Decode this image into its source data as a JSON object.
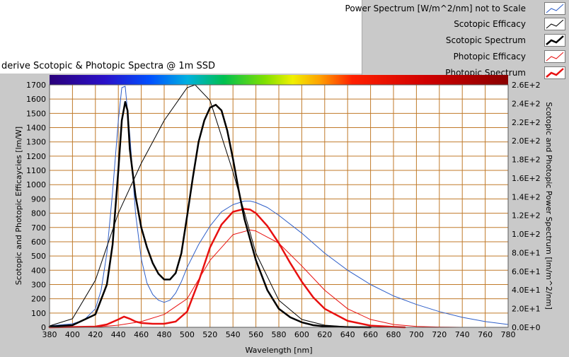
{
  "caption": "derive Scotopic & Photopic Spectra @ 1m SSD",
  "legend": [
    {
      "label": "Power Spectrum [W/m^2/nm] not to Scale",
      "color": "#2f5fc8",
      "width": 1
    },
    {
      "label": "Scotopic Efficacy",
      "color": "#000000",
      "width": 1
    },
    {
      "label": "Scotopic Spectrum",
      "color": "#000000",
      "width": 2.5
    },
    {
      "label": "Photopic Efficacy",
      "color": "#e81010",
      "width": 1
    },
    {
      "label": "Photopic Spectrum",
      "color": "#e81010",
      "width": 2.5
    }
  ],
  "chart_data": {
    "type": "line",
    "xlabel": "Wavelength [nm]",
    "ylabel": "Scotopic and Photopic Efficaycies [lm/W]",
    "y2label": "Scotopic and Photopic Power Spectrum [lm/m^2/nm]",
    "xlim": [
      380,
      780
    ],
    "ylim": [
      0,
      1700
    ],
    "y2lim": [
      0,
      260
    ],
    "xticks": [
      "380",
      "400",
      "420",
      "440",
      "460",
      "480",
      "500",
      "520",
      "540",
      "560",
      "580",
      "600",
      "620",
      "640",
      "660",
      "680",
      "700",
      "720",
      "740",
      "760",
      "780"
    ],
    "yticks": [
      "0",
      "100",
      "200",
      "300",
      "400",
      "500",
      "600",
      "700",
      "800",
      "900",
      "1000",
      "1100",
      "1200",
      "1300",
      "1400",
      "1500",
      "1600",
      "1700"
    ],
    "y2ticks": [
      "0.0E+0",
      "2.0E+1",
      "4.0E+1",
      "6.0E+1",
      "8.0E+1",
      "1.0E+2",
      "1.2E+2",
      "1.4E+2",
      "1.6E+2",
      "1.8E+2",
      "2.0E+2",
      "2.2E+2",
      "2.4E+2",
      "2.6E+2"
    ],
    "grid": true,
    "colors": {
      "grid": "#c07a2a",
      "plot_bg": "#ffffff",
      "panel": "#c9c9c9"
    },
    "series": [
      {
        "name": "Power Spectrum [W/m^2/nm] not to Scale",
        "axis": "left",
        "color": "#2f5fc8",
        "width": 1,
        "x": [
          380,
          400,
          410,
          420,
          425,
          430,
          435,
          440,
          443,
          446,
          450,
          455,
          460,
          465,
          470,
          475,
          480,
          485,
          490,
          495,
          500,
          510,
          520,
          530,
          540,
          550,
          555,
          560,
          570,
          580,
          600,
          620,
          640,
          660,
          680,
          700,
          720,
          740,
          760,
          780
        ],
        "y": [
          10,
          25,
          50,
          130,
          260,
          520,
          950,
          1450,
          1680,
          1690,
          1350,
          800,
          480,
          310,
          230,
          190,
          175,
          190,
          240,
          320,
          420,
          580,
          710,
          810,
          860,
          885,
          885,
          875,
          840,
          785,
          660,
          520,
          400,
          300,
          220,
          160,
          110,
          70,
          40,
          20
        ]
      },
      {
        "name": "Scotopic Efficacy",
        "axis": "left",
        "color": "#000000",
        "width": 1,
        "x": [
          380,
          400,
          420,
          440,
          460,
          480,
          500,
          507,
          520,
          540,
          560,
          580,
          600,
          620,
          640,
          660,
          680
        ],
        "y": [
          10,
          60,
          330,
          800,
          1150,
          1450,
          1680,
          1700,
          1590,
          1090,
          520,
          190,
          55,
          15,
          4,
          1,
          0
        ]
      },
      {
        "name": "Scotopic Spectrum",
        "axis": "left",
        "color": "#000000",
        "width": 2.5,
        "x": [
          380,
          400,
          420,
          430,
          435,
          440,
          443,
          446,
          448,
          450,
          455,
          460,
          465,
          470,
          475,
          480,
          485,
          490,
          495,
          500,
          505,
          510,
          515,
          520,
          525,
          530,
          535,
          540,
          545,
          550,
          560,
          570,
          580,
          590,
          600,
          610,
          620,
          640,
          660
        ],
        "y": [
          5,
          15,
          90,
          300,
          580,
          1100,
          1450,
          1580,
          1520,
          1250,
          920,
          700,
          560,
          450,
          375,
          335,
          335,
          380,
          520,
          780,
          1050,
          1300,
          1450,
          1540,
          1560,
          1520,
          1380,
          1180,
          960,
          760,
          470,
          260,
          130,
          70,
          35,
          15,
          7,
          2,
          0
        ]
      },
      {
        "name": "Photopic Efficacy",
        "axis": "left",
        "color": "#e81010",
        "width": 1,
        "x": [
          380,
          420,
          440,
          460,
          480,
          500,
          520,
          540,
          555,
          560,
          580,
          600,
          620,
          640,
          660,
          680,
          700,
          720,
          740
        ],
        "y": [
          0,
          2,
          15,
          40,
          90,
          200,
          470,
          650,
          683,
          675,
          590,
          430,
          260,
          130,
          55,
          20,
          6,
          2,
          0
        ]
      },
      {
        "name": "Photopic Spectrum",
        "axis": "left",
        "color": "#e81010",
        "width": 2.5,
        "x": [
          380,
          420,
          430,
          440,
          445,
          450,
          455,
          460,
          470,
          480,
          490,
          500,
          510,
          520,
          530,
          540,
          550,
          555,
          560,
          570,
          580,
          590,
          600,
          610,
          620,
          640,
          660,
          680,
          690
        ],
        "y": [
          0,
          5,
          20,
          55,
          75,
          60,
          40,
          30,
          25,
          25,
          40,
          110,
          320,
          560,
          720,
          810,
          830,
          825,
          800,
          710,
          590,
          450,
          320,
          210,
          130,
          45,
          12,
          3,
          0
        ]
      }
    ]
  }
}
